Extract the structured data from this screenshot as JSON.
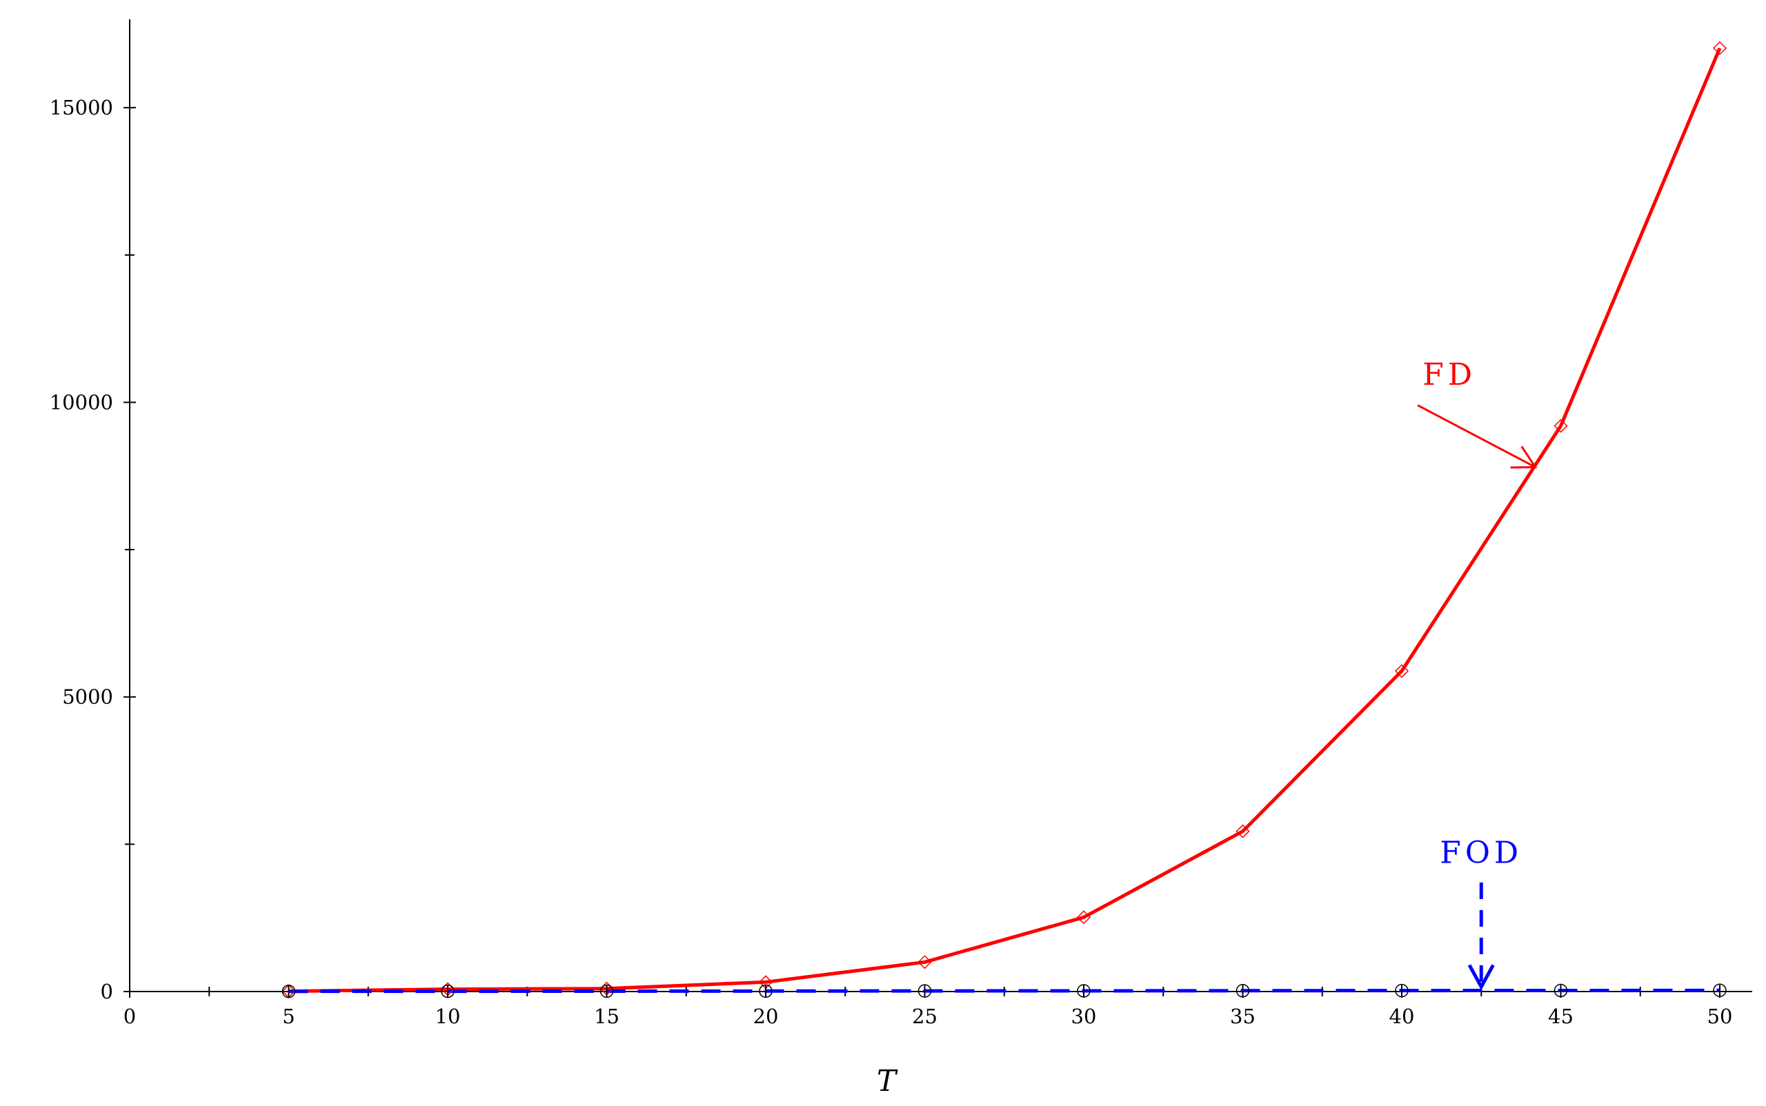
{
  "chart_data": {
    "type": "line",
    "title": "",
    "xlabel": "T",
    "ylabel": "",
    "xlim": [
      0,
      50
    ],
    "ylim": [
      0,
      16500
    ],
    "grid": false,
    "x": [
      5,
      10,
      15,
      20,
      25,
      30,
      35,
      40,
      45,
      50
    ],
    "x_ticks": [
      0,
      5,
      10,
      15,
      20,
      25,
      30,
      35,
      40,
      45,
      50
    ],
    "x_minor_ticks": [
      2.5,
      7.5,
      12.5,
      17.5,
      22.5,
      27.5,
      32.5,
      37.5,
      42.5,
      47.5
    ],
    "y_ticks": [
      0,
      5000,
      10000,
      15000
    ],
    "y_minor_ticks": [
      2500,
      7500,
      12500
    ],
    "series": [
      {
        "name": "FD",
        "color": "#ff0000",
        "line_style": "solid",
        "marker": "diamond",
        "values": [
          5,
          40,
          50,
          160,
          500,
          1260,
          2720,
          5440,
          9600,
          16010
        ]
      },
      {
        "name": "FOD",
        "color": "#0000ff",
        "line_style": "dashed",
        "marker": "circle",
        "values": [
          3,
          5,
          6,
          8,
          10,
          12,
          14,
          16,
          18,
          20
        ]
      }
    ],
    "annotations": [
      {
        "text": "FD",
        "color": "#ff0000",
        "label_at": [
          41.5,
          10300
        ],
        "arrow_from": [
          40.5,
          9950
        ],
        "arrow_to": [
          44.2,
          8900
        ]
      },
      {
        "text": "FOD",
        "color": "#0000ff",
        "label_at": [
          42.5,
          2180
        ],
        "arrow_from": [
          42.5,
          1850
        ],
        "arrow_to": [
          42.5,
          80
        ]
      }
    ]
  }
}
